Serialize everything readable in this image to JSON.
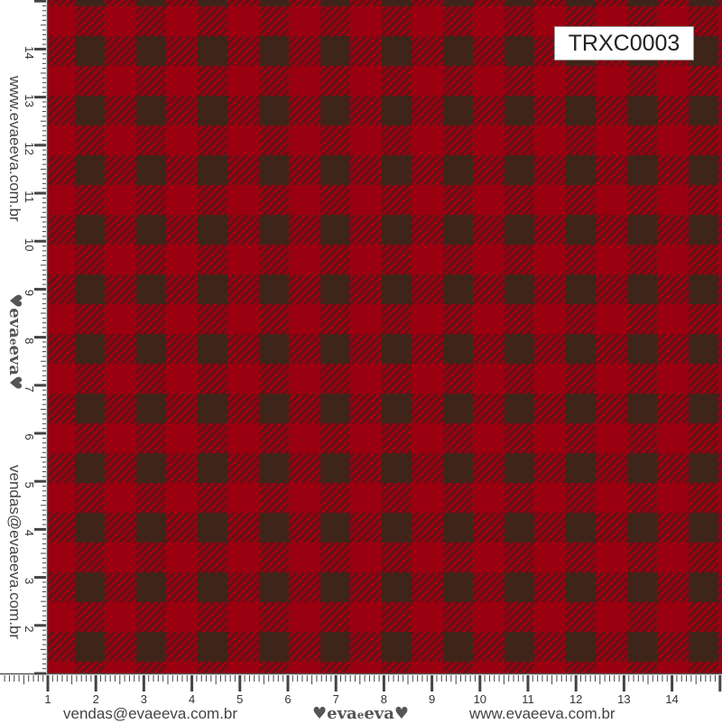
{
  "product_code": "TRXC0003",
  "left_ruler": {
    "website": "www.evaeeva.com.br",
    "email": "vendas@evaeeva.com.br",
    "logo": "eva e eva"
  },
  "bottom_ruler": {
    "email": "vendas@evaeeva.com.br",
    "website": "www.evaeeva.com.br",
    "logo": "eva e eva"
  },
  "ruler_numbers_bottom": [
    1,
    2,
    3,
    4,
    5,
    6,
    7,
    8,
    9,
    10,
    11,
    12,
    13,
    14
  ],
  "ruler_numbers_left": [
    2,
    3,
    4,
    5,
    6,
    7,
    8,
    9,
    10,
    11,
    12,
    13,
    14
  ],
  "colors": {
    "red": "#9a0010",
    "dark": "#3f2419",
    "hatch": "#5a1418"
  }
}
